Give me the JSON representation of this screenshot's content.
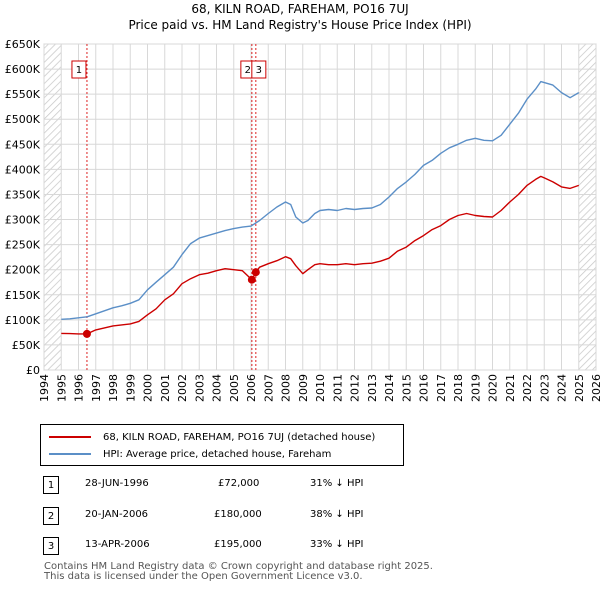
{
  "title_line1": "68, KILN ROAD, FAREHAM, PO16 7UJ",
  "title_line2": "Price paid vs. HM Land Registry's House Price Index (HPI)",
  "chart_data": {
    "type": "line",
    "title": "68, KILN ROAD, FAREHAM, PO16 7UJ — Price paid vs. HM Land Registry's House Price Index (HPI)",
    "xlabel": "",
    "ylabel": "",
    "xlim": [
      1994,
      2026
    ],
    "ylim": [
      0,
      650000
    ],
    "x_ticks": [
      "1994",
      "1995",
      "1996",
      "1997",
      "1998",
      "1999",
      "2000",
      "2001",
      "2002",
      "2003",
      "2004",
      "2005",
      "2006",
      "2007",
      "2008",
      "2009",
      "2010",
      "2011",
      "2012",
      "2013",
      "2014",
      "2015",
      "2016",
      "2017",
      "2018",
      "2019",
      "2020",
      "2021",
      "2022",
      "2023",
      "2024",
      "2025",
      "2026"
    ],
    "y_ticks": [
      {
        "value": 0,
        "label": "£0"
      },
      {
        "value": 50000,
        "label": "£50K"
      },
      {
        "value": 100000,
        "label": "£100K"
      },
      {
        "value": 150000,
        "label": "£150K"
      },
      {
        "value": 200000,
        "label": "£200K"
      },
      {
        "value": 250000,
        "label": "£250K"
      },
      {
        "value": 300000,
        "label": "£300K"
      },
      {
        "value": 350000,
        "label": "£350K"
      },
      {
        "value": 400000,
        "label": "£400K"
      },
      {
        "value": 450000,
        "label": "£450K"
      },
      {
        "value": 500000,
        "label": "£500K"
      },
      {
        "value": 550000,
        "label": "£550K"
      },
      {
        "value": 600000,
        "label": "£600K"
      },
      {
        "value": 650000,
        "label": "£650K"
      }
    ],
    "grid": true,
    "series": [
      {
        "name": "68, KILN ROAD, FAREHAM, PO16 7UJ (detached house)",
        "color": "#cc0000",
        "x": [
          1995.0,
          1995.5,
          1996.0,
          1996.49,
          1997.0,
          1997.5,
          1998.0,
          1998.5,
          1999.0,
          1999.5,
          2000.0,
          2000.5,
          2001.0,
          2001.5,
          2002.0,
          2002.5,
          2003.0,
          2003.5,
          2004.0,
          2004.5,
          2005.0,
          2005.5,
          2006.05,
          2006.28,
          2006.5,
          2007.0,
          2007.5,
          2008.0,
          2008.3,
          2008.6,
          2009.0,
          2009.3,
          2009.7,
          2010.0,
          2010.5,
          2011.0,
          2011.5,
          2012.0,
          2012.5,
          2013.0,
          2013.5,
          2014.0,
          2014.5,
          2015.0,
          2015.5,
          2016.0,
          2016.5,
          2017.0,
          2017.5,
          2018.0,
          2018.5,
          2019.0,
          2019.5,
          2020.0,
          2020.5,
          2021.0,
          2021.5,
          2022.0,
          2022.5,
          2022.8,
          2023.0,
          2023.5,
          2024.0,
          2024.5,
          2025.0
        ],
        "values": [
          73000,
          72500,
          72000,
          72000,
          80000,
          84000,
          88000,
          90000,
          92000,
          97000,
          110000,
          122000,
          140000,
          152000,
          172000,
          182000,
          190000,
          193000,
          198000,
          202000,
          200000,
          198000,
          180000,
          195000,
          205000,
          212000,
          218000,
          226000,
          222000,
          208000,
          192000,
          200000,
          210000,
          212000,
          210000,
          210000,
          212000,
          210000,
          212000,
          213000,
          217000,
          223000,
          237000,
          245000,
          258000,
          268000,
          280000,
          288000,
          300000,
          308000,
          312000,
          308000,
          306000,
          305000,
          318000,
          335000,
          350000,
          368000,
          380000,
          386000,
          383000,
          375000,
          365000,
          362000,
          368000
        ]
      },
      {
        "name": "HPI: Average price, detached house, Fareham",
        "color": "#5b8fc7",
        "x": [
          1995.0,
          1995.5,
          1996.0,
          1996.5,
          1997.0,
          1997.5,
          1998.0,
          1998.5,
          1999.0,
          1999.5,
          2000.0,
          2000.5,
          2001.0,
          2001.5,
          2002.0,
          2002.5,
          2003.0,
          2003.5,
          2004.0,
          2004.5,
          2005.0,
          2005.5,
          2006.0,
          2006.5,
          2007.0,
          2007.5,
          2008.0,
          2008.3,
          2008.6,
          2009.0,
          2009.3,
          2009.7,
          2010.0,
          2010.5,
          2011.0,
          2011.5,
          2012.0,
          2012.5,
          2013.0,
          2013.5,
          2014.0,
          2014.5,
          2015.0,
          2015.5,
          2016.0,
          2016.5,
          2017.0,
          2017.5,
          2018.0,
          2018.5,
          2019.0,
          2019.5,
          2020.0,
          2020.5,
          2021.0,
          2021.5,
          2022.0,
          2022.5,
          2022.8,
          2023.0,
          2023.5,
          2024.0,
          2024.5,
          2025.0
        ],
        "values": [
          101000,
          102000,
          104000,
          106000,
          112000,
          118000,
          124000,
          128000,
          133000,
          140000,
          160000,
          175000,
          190000,
          205000,
          230000,
          252000,
          263000,
          268000,
          273000,
          278000,
          282000,
          285000,
          287000,
          298000,
          312000,
          325000,
          335000,
          330000,
          305000,
          293000,
          298000,
          312000,
          318000,
          320000,
          318000,
          322000,
          320000,
          322000,
          323000,
          330000,
          345000,
          362000,
          375000,
          390000,
          408000,
          418000,
          432000,
          443000,
          450000,
          458000,
          462000,
          458000,
          457000,
          468000,
          490000,
          512000,
          540000,
          560000,
          575000,
          573000,
          568000,
          553000,
          543000,
          553000
        ]
      }
    ],
    "events": [
      {
        "label": "1",
        "x": 1996.49
      },
      {
        "label": "2",
        "x": 2006.05
      },
      {
        "label": "3",
        "x": 2006.28
      }
    ],
    "sale_points": [
      {
        "x": 1996.49,
        "value": 72000
      },
      {
        "x": 2006.05,
        "value": 180000
      },
      {
        "x": 2006.28,
        "value": 195000
      }
    ],
    "hatch_regions": [
      {
        "from": 1994,
        "to": 1995
      },
      {
        "from": 2025,
        "to": 2026
      }
    ]
  },
  "legend": {
    "price_paid": "68, KILN ROAD, FAREHAM, PO16 7UJ (detached house)",
    "hpi": "HPI: Average price, detached house, Fareham",
    "price_paid_color": "#cc0000",
    "hpi_color": "#5b8fc7"
  },
  "transactions": [
    {
      "num": "1",
      "date": "28-JUN-1996",
      "price": "£72,000",
      "hpi_diff": "31% ↓ HPI"
    },
    {
      "num": "2",
      "date": "20-JAN-2006",
      "price": "£180,000",
      "hpi_diff": "38% ↓ HPI"
    },
    {
      "num": "3",
      "date": "13-APR-2006",
      "price": "£195,000",
      "hpi_diff": "33% ↓ HPI"
    }
  ],
  "footer_line1": "Contains HM Land Registry data © Crown copyright and database right 2025.",
  "footer_line2": "This data is licensed under the Open Government Licence v3.0."
}
